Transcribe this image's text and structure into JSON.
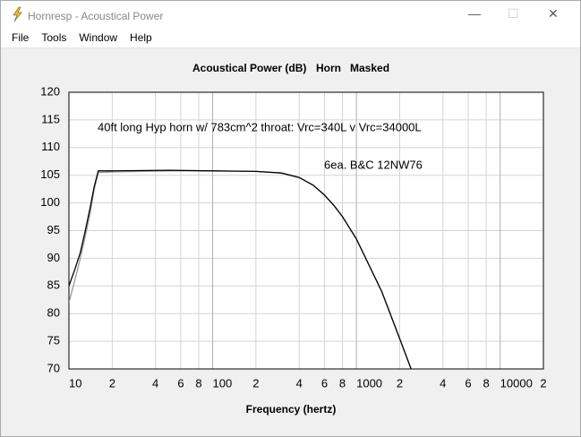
{
  "window": {
    "title": "Hornresp - Acoustical Power",
    "menu": [
      "File",
      "Tools",
      "Window",
      "Help"
    ]
  },
  "chart_data": {
    "type": "line",
    "title": "Acoustical Power (dB)",
    "tags": [
      "Horn",
      "Masked"
    ],
    "annotations": [
      "40ft long Hyp horn w/ 783cm^2 throat:  Vrc=340L v Vrc=34000L",
      "6ea. B&C 12NW76"
    ],
    "xlabel": "Frequency (hertz)",
    "x": [
      10,
      11,
      12,
      13,
      14,
      15,
      16,
      20,
      50,
      100,
      200,
      300,
      400,
      500,
      600,
      700,
      800,
      1000,
      1500,
      2000,
      2400
    ],
    "series": [
      {
        "color": "#999999",
        "values": [
          82,
          86,
          90,
          94,
          98,
          102.5,
          105.5,
          105.6,
          105.8,
          105.8,
          105.7,
          105.4,
          104.6,
          103.2,
          101.4,
          99.5,
          97.5,
          93.5,
          84,
          75.5,
          70
        ]
      },
      {
        "color": "#000000",
        "values": [
          85,
          88,
          91,
          95,
          99,
          103,
          105.8,
          105.8,
          105.9,
          105.8,
          105.7,
          105.4,
          104.6,
          103.2,
          101.4,
          99.5,
          97.5,
          93.5,
          84,
          75.5,
          70
        ]
      }
    ],
    "xlim": [
      10,
      20000
    ],
    "log_x": true,
    "xticks": [
      10,
      {
        "value": 20,
        "label": "2"
      },
      {
        "value": 40,
        "label": "4"
      },
      {
        "value": 60,
        "label": "6"
      },
      {
        "value": 80,
        "label": "8"
      },
      100,
      {
        "value": 200,
        "label": "2"
      },
      {
        "value": 400,
        "label": "4"
      },
      {
        "value": 600,
        "label": "6"
      },
      {
        "value": 800,
        "label": "8"
      },
      1000,
      {
        "value": 2000,
        "label": "2"
      },
      {
        "value": 4000,
        "label": "4"
      },
      {
        "value": 6000,
        "label": "6"
      },
      {
        "value": 8000,
        "label": "8"
      },
      10000,
      {
        "value": 20000,
        "label": "2"
      }
    ],
    "ylim": [
      70,
      120
    ],
    "yticks": [
      70,
      75,
      80,
      85,
      90,
      95,
      100,
      105,
      110,
      115,
      120
    ],
    "grid": true
  }
}
